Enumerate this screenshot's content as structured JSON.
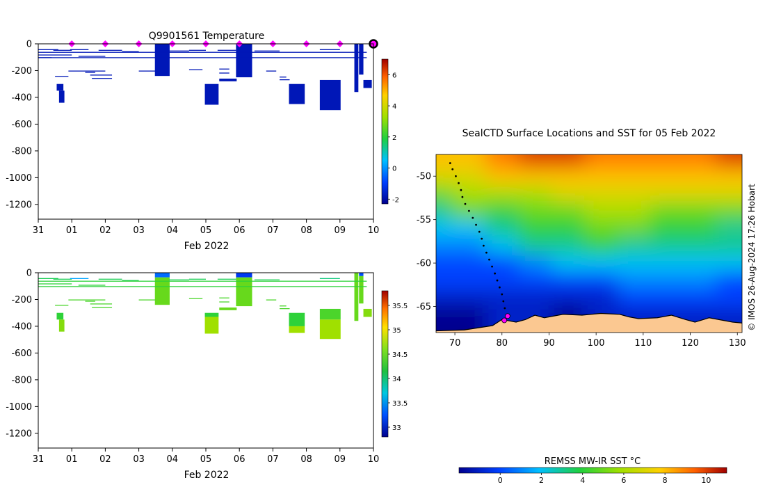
{
  "panel_top": {
    "title": "Q9901561  Temperature",
    "xlabel": "Feb 2022",
    "x_ticks": [
      "31",
      "01",
      "02",
      "03",
      "04",
      "05",
      "06",
      "07",
      "08",
      "09",
      "10"
    ],
    "y_ticks": [
      "0",
      "-200",
      "-400",
      "-600",
      "-800",
      "-1000",
      "-1200"
    ],
    "colorbar_ticks": [
      "-2",
      "0",
      "2",
      "4",
      "6"
    ]
  },
  "panel_bottom": {
    "xlabel": "Feb 2022",
    "x_ticks": [
      "31",
      "01",
      "02",
      "03",
      "04",
      "05",
      "06",
      "07",
      "08",
      "09",
      "10"
    ],
    "y_ticks": [
      "0",
      "-200",
      "-400",
      "-600",
      "-800",
      "-1000",
      "-1200"
    ],
    "colorbar_ticks": [
      "33",
      "33.5",
      "34",
      "34.5",
      "35",
      "35.5"
    ]
  },
  "map": {
    "title": "SealCTD Surface Locations and SST for 05 Feb 2022",
    "x_ticks": [
      "70",
      "80",
      "90",
      "100",
      "110",
      "120",
      "130"
    ],
    "y_ticks": [
      "-50",
      "-55",
      "-60",
      "-65"
    ],
    "credit": "© IMOS 26-Aug-2024 17:26 Hobart",
    "colorbar_label": "REMSS MW-IR SST °C",
    "colorbar_ticks": [
      "0",
      "2",
      "4",
      "6",
      "8",
      "10"
    ]
  },
  "colors": {
    "profile_navy": "#000a8f",
    "marker": "#ff00ff",
    "land": "#fbc891",
    "salinity_green": "#2ecc2e",
    "salinity_lime": "#66e01f"
  },
  "chart_data": [
    {
      "type": "heatmap",
      "title": "Q9901561  Temperature",
      "xlabel": "Feb 2022",
      "ylabel": "",
      "xlim_days": [
        0,
        10
      ],
      "ylim": [
        -1310,
        0
      ],
      "color_range": [
        -2.3,
        7
      ],
      "colorbar_ticks": [
        -2,
        0,
        2,
        4,
        6
      ],
      "marker_days": [
        1,
        2,
        3,
        4,
        5,
        6,
        7,
        8,
        9,
        10
      ],
      "profiles": [
        {
          "x0": 0.55,
          "x1": 0.75,
          "d0": 300,
          "d1": 350,
          "v": -1.8
        },
        {
          "x0": 0.62,
          "x1": 0.78,
          "d0": 350,
          "d1": 440,
          "v": -1.8
        },
        {
          "x0": 3.48,
          "x1": 3.92,
          "d0": 0,
          "d1": 240,
          "v": -1.8
        },
        {
          "x0": 4.97,
          "x1": 5.38,
          "d0": 300,
          "d1": 455,
          "v": -1.8
        },
        {
          "x0": 5.4,
          "x1": 5.92,
          "d0": 260,
          "d1": 280,
          "v": -1.8
        },
        {
          "x0": 5.9,
          "x1": 6.38,
          "d0": 0,
          "d1": 250,
          "v": -1.8
        },
        {
          "x0": 7.48,
          "x1": 7.95,
          "d0": 300,
          "d1": 450,
          "v": -1.8
        },
        {
          "x0": 8.4,
          "x1": 9.02,
          "d0": 270,
          "d1": 495,
          "v": -1.8
        },
        {
          "x0": 9.43,
          "x1": 9.55,
          "d0": 0,
          "d1": 360,
          "v": -1.8
        },
        {
          "x0": 9.57,
          "x1": 9.7,
          "d0": 0,
          "d1": 230,
          "v": -1.8
        },
        {
          "x0": 9.7,
          "x1": 9.95,
          "d0": 270,
          "d1": 330,
          "v": -1.8
        }
      ],
      "lines": [
        {
          "x0": 0.0,
          "x1": 0.6,
          "d": 40
        },
        {
          "x0": 0.45,
          "x1": 1.0,
          "d": 45
        },
        {
          "x0": 0.95,
          "x1": 1.5,
          "d": 40
        },
        {
          "x0": 1.8,
          "x1": 2.5,
          "d": 45
        },
        {
          "x0": 2.5,
          "x1": 3.0,
          "d": 55
        },
        {
          "x0": 3.9,
          "x1": 4.5,
          "d": 50
        },
        {
          "x0": 4.5,
          "x1": 5.0,
          "d": 45
        },
        {
          "x0": 5.35,
          "x1": 5.9,
          "d": 45
        },
        {
          "x0": 6.45,
          "x1": 7.2,
          "d": 50
        },
        {
          "x0": 8.4,
          "x1": 9.0,
          "d": 40
        },
        {
          "x0": 0.0,
          "x1": 1.0,
          "d": 80
        },
        {
          "x0": 1.2,
          "x1": 2.0,
          "d": 90
        },
        {
          "x0": 0.0,
          "x1": 0.4,
          "d": 100
        },
        {
          "x0": 0.9,
          "x1": 2.0,
          "d": 200
        },
        {
          "x0": 1.4,
          "x1": 1.7,
          "d": 210
        },
        {
          "x0": 1.55,
          "x1": 2.2,
          "d": 230
        },
        {
          "x0": 1.6,
          "x1": 2.2,
          "d": 255
        },
        {
          "x0": 0.5,
          "x1": 0.9,
          "d": 240
        },
        {
          "x0": 3.0,
          "x1": 3.5,
          "d": 200
        },
        {
          "x0": 4.5,
          "x1": 4.9,
          "d": 190
        },
        {
          "x0": 5.4,
          "x1": 5.7,
          "d": 185
        },
        {
          "x0": 5.4,
          "x1": 5.7,
          "d": 215
        },
        {
          "x0": 6.8,
          "x1": 7.1,
          "d": 200
        },
        {
          "x0": 7.2,
          "x1": 7.4,
          "d": 245
        },
        {
          "x0": 7.2,
          "x1": 7.5,
          "d": 265
        },
        {
          "x0": 0.0,
          "x1": 9.8,
          "d": 60
        },
        {
          "x0": 0.0,
          "x1": 9.8,
          "d": 100
        }
      ]
    },
    {
      "type": "heatmap",
      "title": "",
      "xlabel": "Feb 2022",
      "ylabel": "",
      "xlim_days": [
        0,
        10
      ],
      "ylim": [
        -1310,
        0
      ],
      "color_range": [
        32.8,
        35.8
      ],
      "colorbar_ticks": [
        33,
        33.5,
        34,
        34.5,
        35,
        35.5
      ],
      "profiles": [
        {
          "x0": 0.55,
          "x1": 0.75,
          "d0": 300,
          "d1": 350,
          "v": 34.2
        },
        {
          "x0": 0.62,
          "x1": 0.78,
          "d0": 350,
          "d1": 440,
          "v": 34.5
        },
        {
          "x0": 3.48,
          "x1": 3.92,
          "d0": 0,
          "d1": 35,
          "v": 33.4
        },
        {
          "x0": 3.48,
          "x1": 3.92,
          "d0": 35,
          "d1": 240,
          "v": 34.4
        },
        {
          "x0": 4.97,
          "x1": 5.38,
          "d0": 300,
          "d1": 330,
          "v": 34.2
        },
        {
          "x0": 4.97,
          "x1": 5.38,
          "d0": 330,
          "d1": 455,
          "v": 34.6
        },
        {
          "x0": 5.4,
          "x1": 5.92,
          "d0": 260,
          "d1": 280,
          "v": 34.4
        },
        {
          "x0": 5.9,
          "x1": 6.38,
          "d0": 0,
          "d1": 35,
          "v": 33.2
        },
        {
          "x0": 5.9,
          "x1": 6.38,
          "d0": 35,
          "d1": 250,
          "v": 34.4
        },
        {
          "x0": 7.48,
          "x1": 7.95,
          "d0": 300,
          "d1": 400,
          "v": 34.2
        },
        {
          "x0": 7.48,
          "x1": 7.95,
          "d0": 400,
          "d1": 450,
          "v": 34.6
        },
        {
          "x0": 8.4,
          "x1": 9.02,
          "d0": 270,
          "d1": 350,
          "v": 34.3
        },
        {
          "x0": 8.4,
          "x1": 9.02,
          "d0": 350,
          "d1": 495,
          "v": 34.6
        },
        {
          "x0": 9.43,
          "x1": 9.55,
          "d0": 0,
          "d1": 360,
          "v": 34.4
        },
        {
          "x0": 9.57,
          "x1": 9.7,
          "d0": 0,
          "d1": 25,
          "v": 33.3
        },
        {
          "x0": 9.57,
          "x1": 9.7,
          "d0": 25,
          "d1": 230,
          "v": 34.4
        },
        {
          "x0": 9.7,
          "x1": 9.95,
          "d0": 270,
          "d1": 330,
          "v": 34.5
        }
      ],
      "lines": [
        {
          "x0": 0.0,
          "x1": 0.6,
          "d": 40,
          "v": 34.1
        },
        {
          "x0": 0.45,
          "x1": 1.0,
          "d": 45,
          "v": 34.1
        },
        {
          "x0": 0.95,
          "x1": 1.5,
          "d": 40,
          "v": 33.6
        },
        {
          "x0": 1.8,
          "x1": 2.5,
          "d": 45,
          "v": 34.1
        },
        {
          "x0": 2.5,
          "x1": 3.0,
          "d": 55,
          "v": 34.1
        },
        {
          "x0": 3.9,
          "x1": 4.5,
          "d": 50,
          "v": 34.1
        },
        {
          "x0": 4.5,
          "x1": 5.0,
          "d": 45,
          "v": 34.1
        },
        {
          "x0": 5.35,
          "x1": 5.9,
          "d": 45,
          "v": 34.1
        },
        {
          "x0": 6.45,
          "x1": 7.2,
          "d": 50,
          "v": 34.1
        },
        {
          "x0": 8.4,
          "x1": 9.0,
          "d": 40,
          "v": 34.0
        },
        {
          "x0": 0.0,
          "x1": 1.0,
          "d": 80,
          "v": 34.2
        },
        {
          "x0": 1.2,
          "x1": 2.0,
          "d": 90,
          "v": 34.2
        },
        {
          "x0": 0.9,
          "x1": 2.0,
          "d": 200,
          "v": 34.3
        },
        {
          "x0": 1.4,
          "x1": 1.7,
          "d": 210,
          "v": 34.3
        },
        {
          "x0": 1.55,
          "x1": 2.2,
          "d": 230,
          "v": 34.3
        },
        {
          "x0": 1.6,
          "x1": 2.2,
          "d": 255,
          "v": 34.3
        },
        {
          "x0": 0.5,
          "x1": 0.9,
          "d": 240,
          "v": 34.3
        },
        {
          "x0": 3.0,
          "x1": 3.5,
          "d": 200,
          "v": 34.3
        },
        {
          "x0": 4.5,
          "x1": 4.9,
          "d": 190,
          "v": 34.3
        },
        {
          "x0": 5.4,
          "x1": 5.7,
          "d": 185,
          "v": 34.3
        },
        {
          "x0": 5.4,
          "x1": 5.7,
          "d": 215,
          "v": 34.3
        },
        {
          "x0": 6.8,
          "x1": 7.1,
          "d": 200,
          "v": 34.3
        },
        {
          "x0": 7.2,
          "x1": 7.4,
          "d": 245,
          "v": 34.3
        },
        {
          "x0": 7.2,
          "x1": 7.5,
          "d": 265,
          "v": 34.3
        },
        {
          "x0": 0.0,
          "x1": 9.8,
          "d": 60,
          "v": 34.2
        },
        {
          "x0": 0.0,
          "x1": 9.8,
          "d": 100,
          "v": 34.2
        }
      ]
    },
    {
      "type": "heatmap",
      "title": "SealCTD Surface Locations and SST for 05 Feb 2022",
      "xlabel": "",
      "ylabel": "",
      "xlim": [
        66,
        131
      ],
      "ylim": [
        -68,
        -47.5
      ],
      "sst_range": [
        -2,
        11
      ],
      "colorbar_label": "REMSS MW-IR SST °C",
      "colorbar_ticks": [
        0,
        2,
        4,
        6,
        8,
        10
      ],
      "sst_grid_lon": [
        66,
        73,
        80,
        87,
        94,
        101,
        108,
        115,
        122,
        129
      ],
      "sst_grid_lat": [
        -48,
        -50,
        -52,
        -54,
        -56,
        -58,
        -60,
        -62,
        -64,
        -66
      ],
      "sst_grid": [
        [
          8,
          8,
          9,
          10,
          10,
          9,
          9,
          9,
          9,
          10
        ],
        [
          7,
          7,
          8,
          8,
          8,
          8,
          8,
          8,
          8,
          8
        ],
        [
          5,
          6,
          6,
          6,
          7,
          7,
          7,
          7,
          7,
          7
        ],
        [
          3,
          5,
          4,
          5,
          5,
          6,
          6,
          5,
          5,
          5
        ],
        [
          2,
          2,
          3,
          4,
          4,
          5,
          5,
          4,
          4,
          3
        ],
        [
          1,
          1,
          2,
          3,
          3,
          4,
          3,
          3,
          3,
          3
        ],
        [
          0,
          0,
          0,
          1,
          2,
          2,
          2,
          2,
          2,
          2
        ],
        [
          0,
          0,
          0,
          0,
          0,
          0,
          1,
          1,
          1,
          0
        ],
        [
          -1,
          -1,
          -1,
          -1,
          -1,
          -1,
          0,
          0,
          0,
          0
        ],
        [
          -2,
          -2,
          -1,
          -1,
          -2,
          -1,
          -1,
          -1,
          -1,
          -1
        ]
      ],
      "coast_lon": [
        66,
        72,
        78,
        80,
        83,
        85,
        87,
        89,
        93,
        97,
        101,
        105,
        107,
        109,
        113,
        116,
        119,
        121,
        124,
        126,
        129,
        131
      ],
      "coast_lat": [
        -67.8,
        -67.7,
        -67.2,
        -66.5,
        -66.8,
        -66.5,
        -66.0,
        -66.3,
        -65.9,
        -66.0,
        -65.8,
        -65.9,
        -66.2,
        -66.4,
        -66.3,
        -66.0,
        -66.5,
        -66.8,
        -66.3,
        -66.5,
        -66.8,
        -66.9
      ],
      "track_lon": [
        69.0,
        69.5,
        70.2,
        70.8,
        71.3,
        71.6,
        72.2,
        73.0,
        73.8,
        74.5,
        75.2,
        75.7,
        76.1,
        76.7,
        77.3,
        77.9,
        78.5,
        79.0,
        79.5,
        80.0,
        80.3,
        80.6,
        81.0
      ],
      "track_lat": [
        -48.5,
        -49.2,
        -50.0,
        -50.8,
        -51.6,
        -52.4,
        -53.2,
        -54.0,
        -54.8,
        -55.6,
        -56.4,
        -57.2,
        -58.0,
        -58.8,
        -59.6,
        -60.4,
        -61.2,
        -62.0,
        -62.8,
        -63.6,
        -64.4,
        -65.2,
        -66.0
      ],
      "highlight_lon": [
        81.2,
        80.5
      ],
      "highlight_lat": [
        -66.1,
        -66.6
      ]
    }
  ]
}
